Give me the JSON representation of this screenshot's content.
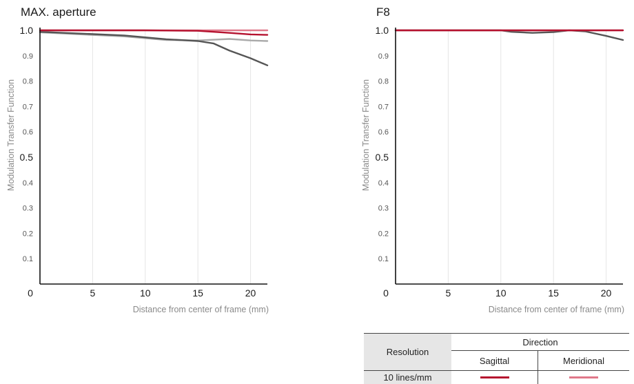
{
  "chart_data": [
    {
      "type": "line",
      "title": "MAX. aperture",
      "ylabel": "Modulation Transfer Function",
      "xlabel": "Distance from center of frame (mm)",
      "xlim": [
        0,
        21.6
      ],
      "ylim": [
        0,
        1.0
      ],
      "x_ticks": [
        "0",
        "5",
        "10",
        "15",
        "20"
      ],
      "y_ticks": [
        "1.0",
        "0.9",
        "0.8",
        "0.7",
        "0.6",
        "0.5",
        "0.4",
        "0.3",
        "0.2",
        "0.1"
      ],
      "grid": "vertical",
      "series": [
        {
          "name": "10 lines/mm Sagittal",
          "color": "#b5122f",
          "points": [
            [
              0,
              1.0
            ],
            [
              5,
              1.0
            ],
            [
              10,
              1.0
            ],
            [
              15,
              0.998
            ],
            [
              18,
              0.99
            ],
            [
              20,
              0.984
            ],
            [
              21.6,
              0.982
            ]
          ]
        },
        {
          "name": "10 lines/mm Meridional",
          "color": "#e0788a",
          "points": [
            [
              0,
              1.0
            ],
            [
              5,
              1.0
            ],
            [
              10,
              1.0
            ],
            [
              15,
              1.0
            ],
            [
              18,
              1.0
            ],
            [
              21.6,
              1.0
            ]
          ]
        },
        {
          "color": "#555555",
          "points": [
            [
              0,
              0.994
            ],
            [
              4,
              0.987
            ],
            [
              8,
              0.98
            ],
            [
              12,
              0.965
            ],
            [
              15,
              0.958
            ],
            [
              16.5,
              0.948
            ],
            [
              18,
              0.92
            ],
            [
              20,
              0.89
            ],
            [
              21.6,
              0.862
            ]
          ]
        },
        {
          "color": "#a9a9a9",
          "points": [
            [
              0,
              0.992
            ],
            [
              4,
              0.984
            ],
            [
              8,
              0.976
            ],
            [
              12,
              0.962
            ],
            [
              15,
              0.96
            ],
            [
              18,
              0.966
            ],
            [
              20,
              0.96
            ],
            [
              21.6,
              0.958
            ]
          ]
        }
      ]
    },
    {
      "type": "line",
      "title": "F8",
      "ylabel": "Modulation Transfer Function",
      "xlabel": "Distance from center of frame (mm)",
      "xlim": [
        0,
        21.6
      ],
      "ylim": [
        0,
        1.0
      ],
      "x_ticks": [
        "0",
        "5",
        "10",
        "15",
        "20"
      ],
      "y_ticks": [
        "1.0",
        "0.9",
        "0.8",
        "0.7",
        "0.6",
        "0.5",
        "0.4",
        "0.3",
        "0.2",
        "0.1"
      ],
      "grid": "vertical",
      "series": [
        {
          "name": "10 lines/mm Sagittal",
          "color": "#b5122f",
          "points": [
            [
              0,
              1.0
            ],
            [
              5,
              1.0
            ],
            [
              10,
              1.0
            ],
            [
              15,
              1.0
            ],
            [
              21.6,
              1.0
            ]
          ]
        },
        {
          "name": "10 lines/mm Meridional",
          "color": "#e0788a",
          "points": [
            [
              0,
              1.0
            ],
            [
              5,
              1.0
            ],
            [
              10,
              1.0
            ],
            [
              15,
              1.0
            ],
            [
              21.6,
              1.0
            ]
          ]
        },
        {
          "color": "#555555",
          "points": [
            [
              0,
              1.0
            ],
            [
              10,
              1.0
            ],
            [
              11,
              0.994
            ],
            [
              13,
              0.99
            ],
            [
              15,
              0.993
            ],
            [
              16.5,
              1.0
            ],
            [
              18,
              0.996
            ],
            [
              20,
              0.978
            ],
            [
              21.6,
              0.962
            ]
          ]
        }
      ]
    }
  ],
  "legend": {
    "resolution_header": "Resolution",
    "direction_header": "Direction",
    "sagittal_header": "Sagittal",
    "meridional_header": "Meridional",
    "row_label": "10 lines/mm",
    "sagittal_color": "#b5122f",
    "meridional_color": "#e0788a"
  }
}
